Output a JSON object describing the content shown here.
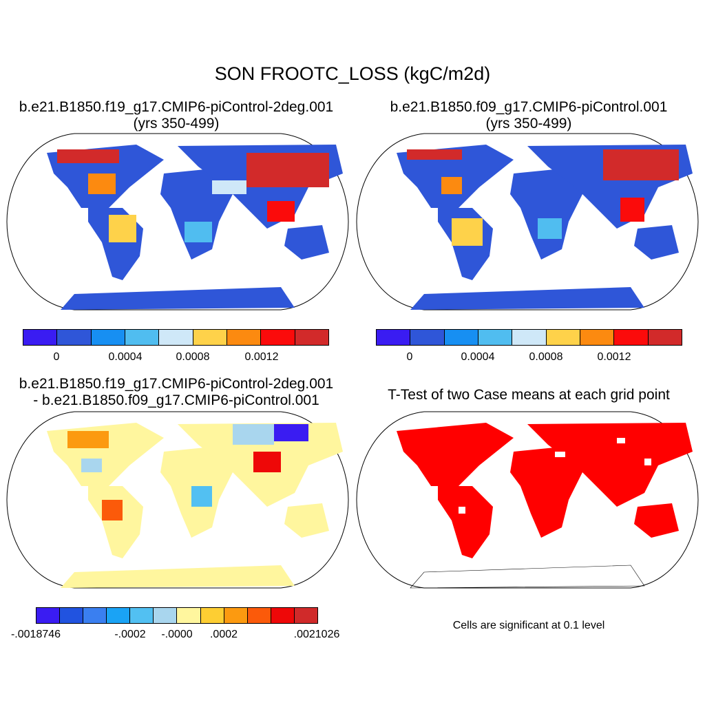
{
  "main_title": "SON FROOTC_LOSS (kgC/m2d)",
  "panels": {
    "top_left": {
      "title_line1": "b.e21.B1850.f19_g17.CMIP6-piControl-2deg.001",
      "title_line2": "(yrs 350-499)"
    },
    "top_right": {
      "title_line1": "b.e21.B1850.f09_g17.CMIP6-piControl.001",
      "title_line2": "(yrs 350-499)"
    },
    "bottom_left": {
      "title_line1": "b.e21.B1850.f19_g17.CMIP6-piControl-2deg.001",
      "title_line2": "- b.e21.B1850.f09_g17.CMIP6-piControl.001"
    },
    "bottom_right": {
      "title_line1": "T-Test of two Case means at each grid point",
      "note": "Cells are significant at 0.1 level"
    }
  },
  "colorbar_main": {
    "colors": [
      "#3a1cf2",
      "#2f56d8",
      "#178ff2",
      "#50bdf0",
      "#cfe8f8",
      "#fed24a",
      "#fc8a10",
      "#fb0b0b",
      "#d22a2a"
    ],
    "tick_labels": [
      "0",
      "0.0004",
      "0.0008",
      "0.0012"
    ]
  },
  "colorbar_diff": {
    "colors": [
      "#3a1cf2",
      "#2153e0",
      "#3a7ff0",
      "#1aa3f5",
      "#52c0f2",
      "#a9d6ee",
      "#fff69e",
      "#fdce33",
      "#fc9a10",
      "#fb5a0a",
      "#ee0808",
      "#d02a2a"
    ],
    "tick_labels": [
      "-.0018746",
      "-.0002",
      "-.0000",
      ".0002",
      ".0021026"
    ]
  },
  "signif_color": "#ff0000",
  "ocean_color": "#ffffff"
}
